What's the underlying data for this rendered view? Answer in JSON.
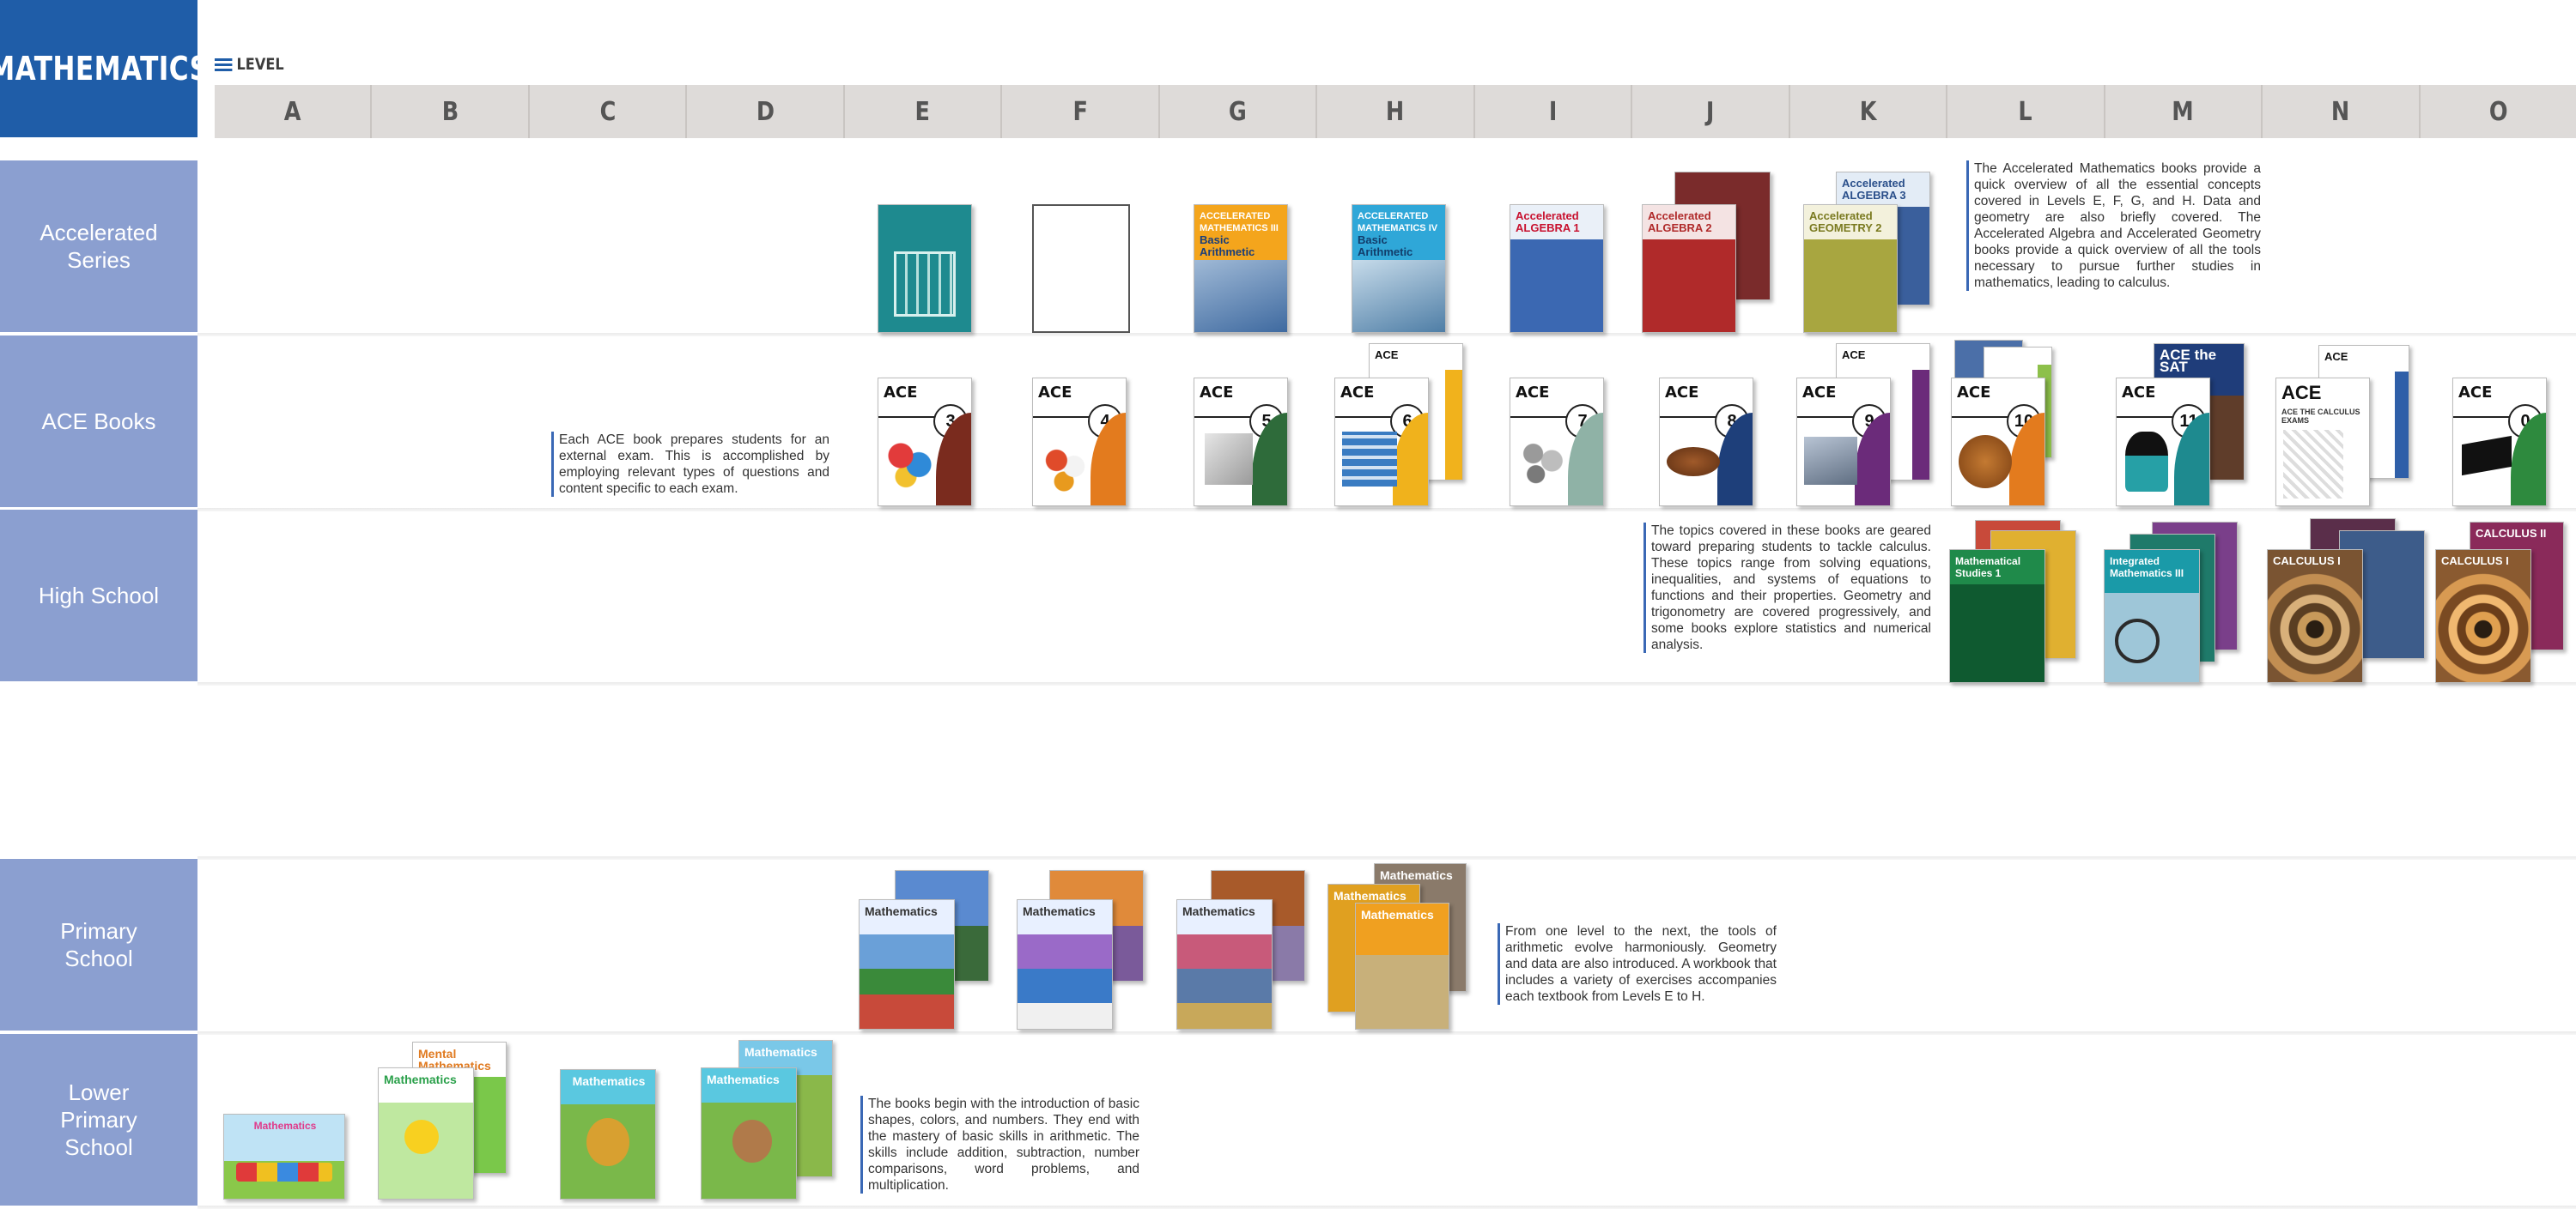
{
  "title": "MATHEMATICS",
  "level_label": "LEVEL",
  "levels": [
    "A",
    "B",
    "C",
    "D",
    "E",
    "F",
    "G",
    "H",
    "I",
    "J",
    "K",
    "L",
    "M",
    "N",
    "O"
  ],
  "rows": {
    "accelerated": "Accelerated\nSeries",
    "ace": "ACE Books",
    "high_school": "High School",
    "primary": "Primary\nSchool",
    "lower_primary": "Lower\nPrimary\nSchool"
  },
  "descriptions": {
    "accelerated": "The Accelerated Mathematics books provide a quick overview of all the essential concepts covered in Levels E, F, G, and H. Data and geometry are also briefly covered. The Accelerated Algebra and Accelerated Geometry books provide a quick overview of all the tools necessary to pursue further studies in mathematics, leading to calculus.",
    "ace": "Each ACE book prepares students for an external exam. This is accomplished by employing relevant types of questions and content specific to each exam.",
    "high_school": "The topics covered in these books are geared toward preparing students to tackle calculus. These topics range from solving equations, inequalities, and systems of equations to functions and their properties. Geometry and trigonometry are covered progressively, and some books explore statistics and numerical analysis.",
    "primary": "From one level to the next, the tools of arithmetic evolve harmoniously. Geometry and data are also introduced. A workbook that includes a variety of exercises accompanies each textbook from Levels E to H.",
    "lower_primary": "The books begin with the introduction of basic shapes, colors, and numbers. They end with the mastery of basic skills in arithmetic. The skills include addition, subtraction, number comparisons, word problems, and multiplication."
  },
  "book_titles": {
    "acc_iii": "ACCELERATED MATHEMATICS III",
    "acc_iii_sub": "Basic Arithmetic",
    "acc_iv": "ACCELERATED MATHEMATICS IV",
    "acc_iv_sub": "Basic Arithmetic",
    "alg1": "Accelerated ALGEBRA 1",
    "alg2": "Accelerated ALGEBRA 2",
    "geo2": "Accelerated GEOMETRY 2",
    "alg3": "Accelerated ALGEBRA 3",
    "ace": "ACE",
    "ace_sat": "ACE the SAT",
    "ace_calculus": "ACE THE CALCULUS EXAMS",
    "hs_ms1": "Mathematical Studies 1",
    "hs_im": "Integrated Mathematics III",
    "hs_calc1": "CALCULUS I",
    "hs_calc2": "CALCULUS II",
    "prim": "Mathematics",
    "mental": "Mental Mathematics",
    "lp": "Mathematics"
  },
  "ace_numbers": [
    "3",
    "4",
    "5",
    "6",
    "7",
    "8",
    "9",
    "10",
    "11",
    "",
    "0"
  ],
  "colors": {
    "title_bg": "#1f5da8",
    "row_label_bg": "#8b9fd0",
    "level_bar_bg": "#dedbd9"
  }
}
